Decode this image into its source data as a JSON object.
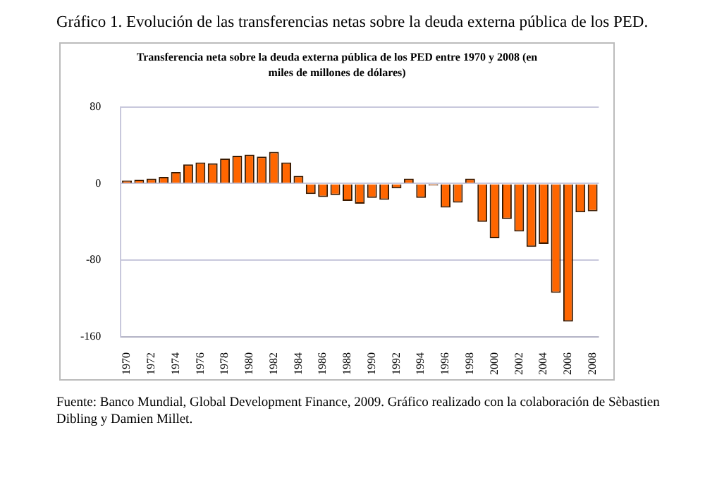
{
  "chart_data": {
    "type": "bar",
    "title": "Gráfico 1. Evolución de las transferencias netas sobre la deuda externa pública de los PED.",
    "subtitle": "Transferencia neta sobre la deuda externa pública de los PED entre 1970 y 2008 (en miles de millones de dólares)",
    "categories": [
      "1970",
      null,
      "1972",
      null,
      "1974",
      null,
      "1976",
      null,
      "1978",
      null,
      "1980",
      null,
      "1982",
      null,
      "1984",
      null,
      "1986",
      null,
      "1988",
      null,
      "1990",
      null,
      "1992",
      null,
      "1994",
      null,
      "1996",
      null,
      "1998",
      null,
      "2000",
      null,
      "2002",
      null,
      "2004",
      null,
      "2006",
      null,
      "2008"
    ],
    "values": [
      3,
      4,
      5,
      7,
      12,
      20,
      22,
      21,
      26,
      29,
      30,
      28,
      33,
      22,
      8,
      -11,
      -14,
      -12,
      -18,
      -21,
      -15,
      -17,
      -5,
      5,
      -15,
      -2,
      -25,
      -20,
      5,
      -40,
      -57,
      -37,
      -50,
      -66,
      -63,
      -114,
      -144,
      -30,
      -29
    ],
    "color": "#ff6600",
    "ylim": [
      -160,
      80
    ],
    "yticks": [
      -160,
      -80,
      0,
      80
    ],
    "grid": "y",
    "annotations": [
      "Fuente: Banco Mundial, Global Development Finance, 2009. Gráfico realizado con la colaboración de Sèbastien Dibling y Damien Millet."
    ]
  }
}
